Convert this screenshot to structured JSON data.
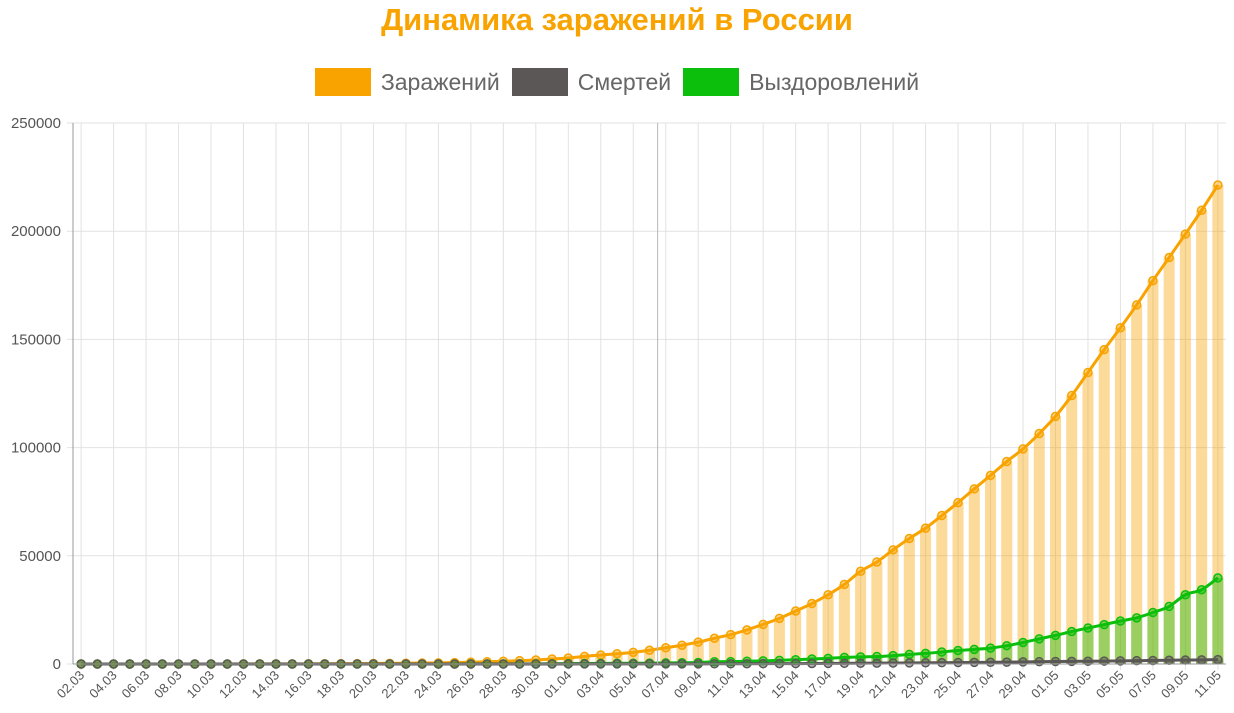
{
  "chart_data": {
    "type": "bar+line",
    "title": "Динамика заражений в России",
    "xlabel": "",
    "ylabel": "",
    "ylim": [
      0,
      250000
    ],
    "y_ticks": [
      0,
      50000,
      100000,
      150000,
      200000,
      250000
    ],
    "legend_position": "top-center",
    "grid": true,
    "x": [
      "02.03",
      "03.03",
      "04.03",
      "05.03",
      "06.03",
      "07.03",
      "08.03",
      "09.03",
      "10.03",
      "11.03",
      "12.03",
      "13.03",
      "14.03",
      "15.03",
      "16.03",
      "17.03",
      "18.03",
      "19.03",
      "20.03",
      "21.03",
      "22.03",
      "23.03",
      "24.03",
      "25.03",
      "26.03",
      "27.03",
      "28.03",
      "29.03",
      "30.03",
      "31.03",
      "01.04",
      "02.04",
      "03.04",
      "04.04",
      "05.04",
      "06.04",
      "07.04",
      "08.04",
      "09.04",
      "10.04",
      "11.04",
      "12.04",
      "13.04",
      "14.04",
      "15.04",
      "16.04",
      "17.04",
      "18.04",
      "19.04",
      "20.04",
      "21.04",
      "22.04",
      "23.04",
      "24.04",
      "25.04",
      "26.04",
      "27.04",
      "28.04",
      "29.04",
      "30.04",
      "01.05",
      "02.05",
      "03.05",
      "04.05",
      "05.05",
      "06.05",
      "07.05",
      "08.05",
      "09.05",
      "10.05",
      "11.05"
    ],
    "x_tick_labels": [
      "02.03",
      "04.03",
      "06.03",
      "08.03",
      "10.03",
      "12.03",
      "14.03",
      "16.03",
      "18.03",
      "20.03",
      "22.03",
      "24.03",
      "26.03",
      "28.03",
      "30.03",
      "01.04",
      "03.04",
      "05.04",
      "07.04",
      "09.04",
      "11.04",
      "13.04",
      "15.04",
      "17.04",
      "19.04",
      "21.04",
      "23.04",
      "25.04",
      "27.04",
      "29.04",
      "01.05",
      "03.05",
      "05.05",
      "07.05",
      "09.05",
      "11.05"
    ],
    "series": [
      {
        "name": "Заражений",
        "color": "#f8a300",
        "values": [
          3,
          3,
          3,
          4,
          10,
          14,
          17,
          17,
          20,
          28,
          34,
          45,
          59,
          63,
          90,
          114,
          147,
          199,
          253,
          306,
          367,
          438,
          495,
          658,
          840,
          1036,
          1264,
          1534,
          1836,
          2337,
          2777,
          3548,
          4149,
          4731,
          5389,
          6343,
          7497,
          8672,
          10131,
          11917,
          13584,
          15770,
          18328,
          21102,
          24490,
          27938,
          32008,
          36793,
          42853,
          47121,
          52763,
          57999,
          62773,
          68622,
          74588,
          80949,
          87147,
          93558,
          99399,
          106498,
          114431,
          124054,
          134687,
          145268,
          155370,
          165929,
          177160,
          187859,
          198676,
          209688,
          221344
        ]
      },
      {
        "name": "Смертей",
        "color": "#5c5757",
        "values": [
          0,
          0,
          0,
          0,
          0,
          0,
          0,
          0,
          0,
          0,
          0,
          0,
          0,
          0,
          0,
          0,
          0,
          0,
          1,
          1,
          1,
          1,
          1,
          2,
          3,
          4,
          4,
          8,
          9,
          17,
          24,
          30,
          34,
          43,
          45,
          47,
          58,
          63,
          76,
          94,
          106,
          130,
          148,
          170,
          198,
          232,
          273,
          313,
          361,
          405,
          456,
          513,
          555,
          615,
          681,
          747,
          794,
          867,
          972,
          1073,
          1169,
          1222,
          1280,
          1356,
          1451,
          1537,
          1625,
          1723,
          1827,
          1915,
          2009
        ]
      },
      {
        "name": "Выздоровлений",
        "color": "#0cbf0c",
        "values": [
          0,
          0,
          0,
          0,
          0,
          0,
          0,
          0,
          0,
          0,
          0,
          0,
          0,
          0,
          0,
          0,
          0,
          0,
          9,
          9,
          9,
          17,
          17,
          22,
          38,
          45,
          49,
          64,
          66,
          121,
          190,
          235,
          281,
          333,
          355,
          406,
          494,
          580,
          698,
          1045,
          1116,
          1291,
          1470,
          1694,
          1986,
          2304,
          2590,
          3057,
          3291,
          3446,
          3873,
          4420,
          4891,
          5568,
          6250,
          6767,
          7346,
          8456,
          9948,
          11619,
          13220,
          15013,
          16639,
          18209,
          19865,
          21327,
          23803,
          26608,
          32008,
          34306,
          39801
        ]
      }
    ]
  }
}
